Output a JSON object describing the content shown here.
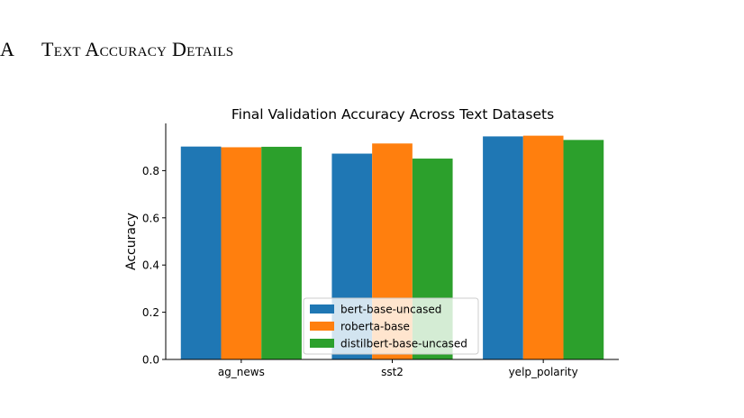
{
  "section": {
    "number": "A",
    "title": "Text Accuracy Details"
  },
  "chart_data": {
    "type": "bar",
    "title": "Final Validation Accuracy Across Text Datasets",
    "xlabel": "",
    "ylabel": "Accuracy",
    "categories": [
      "ag_news",
      "sst2",
      "yelp_polarity"
    ],
    "ylim": [
      0,
      1.0
    ],
    "yticks": [
      "0.0",
      "0.2",
      "0.4",
      "0.6",
      "0.8"
    ],
    "ytick_values": [
      0.0,
      0.2,
      0.4,
      0.6,
      0.8
    ],
    "grid": false,
    "legend_position": "lower-center",
    "series": [
      {
        "name": "bert-base-uncased",
        "color": "#1f77b4",
        "values": [
          0.902,
          0.872,
          0.945
        ]
      },
      {
        "name": "roberta-base",
        "color": "#ff7f0e",
        "values": [
          0.899,
          0.915,
          0.948
        ]
      },
      {
        "name": "distilbert-base-uncased",
        "color": "#2ca02c",
        "values": [
          0.901,
          0.851,
          0.93
        ]
      }
    ]
  }
}
